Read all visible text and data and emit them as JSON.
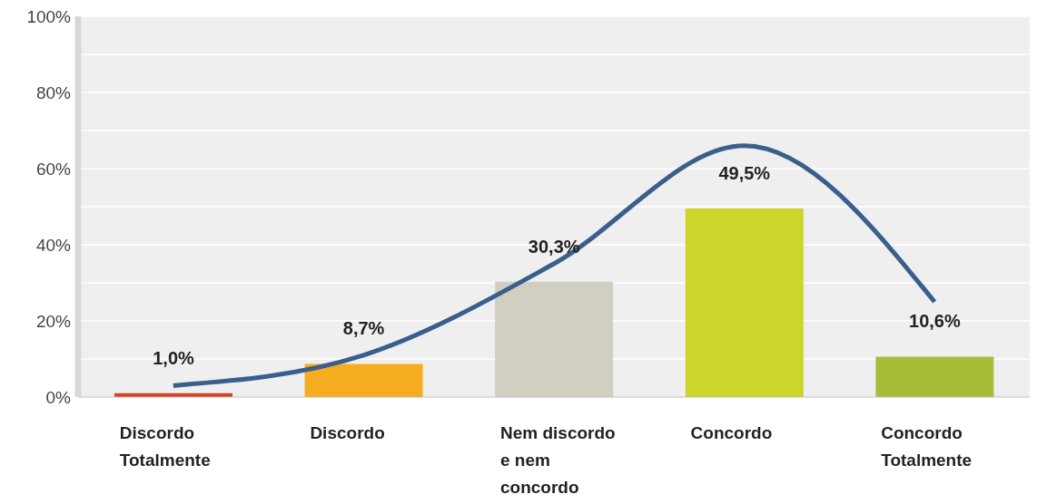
{
  "chart_data": {
    "type": "bar",
    "categories": [
      "Discordo Totalmente",
      "Discordo",
      "Nem discordo e nem concordo",
      "Concordo",
      "Concordo Totalmente"
    ],
    "series": [
      {
        "colors": [
          "#d9401e",
          "#f5ad1f",
          "#d0cfc2",
          "#ccd52a",
          "#a6bd39"
        ],
        "values": [
          1.0,
          8.7,
          30.3,
          49.5,
          10.6
        ],
        "value_labels": [
          "1,0%",
          "8,7%",
          "30,3%",
          "49,5%",
          "10,6%"
        ]
      },
      {
        "type": "line",
        "color": "#3a5f8c",
        "values": [
          3,
          11,
          35,
          66,
          25
        ]
      }
    ],
    "ylim": [
      0,
      100
    ],
    "yticks": [
      {
        "value": 0,
        "label": "0%"
      },
      {
        "value": 10,
        "label": null
      },
      {
        "value": 20,
        "label": "20%"
      },
      {
        "value": 30,
        "label": null
      },
      {
        "value": 40,
        "label": "40%"
      },
      {
        "value": 50,
        "label": null
      },
      {
        "value": 60,
        "label": "60%"
      },
      {
        "value": 70,
        "label": null
      },
      {
        "value": 80,
        "label": "80%"
      },
      {
        "value": 90,
        "label": null
      },
      {
        "value": 100,
        "label": "100%"
      }
    ],
    "grid": "y",
    "legend": false,
    "marker": "none"
  }
}
